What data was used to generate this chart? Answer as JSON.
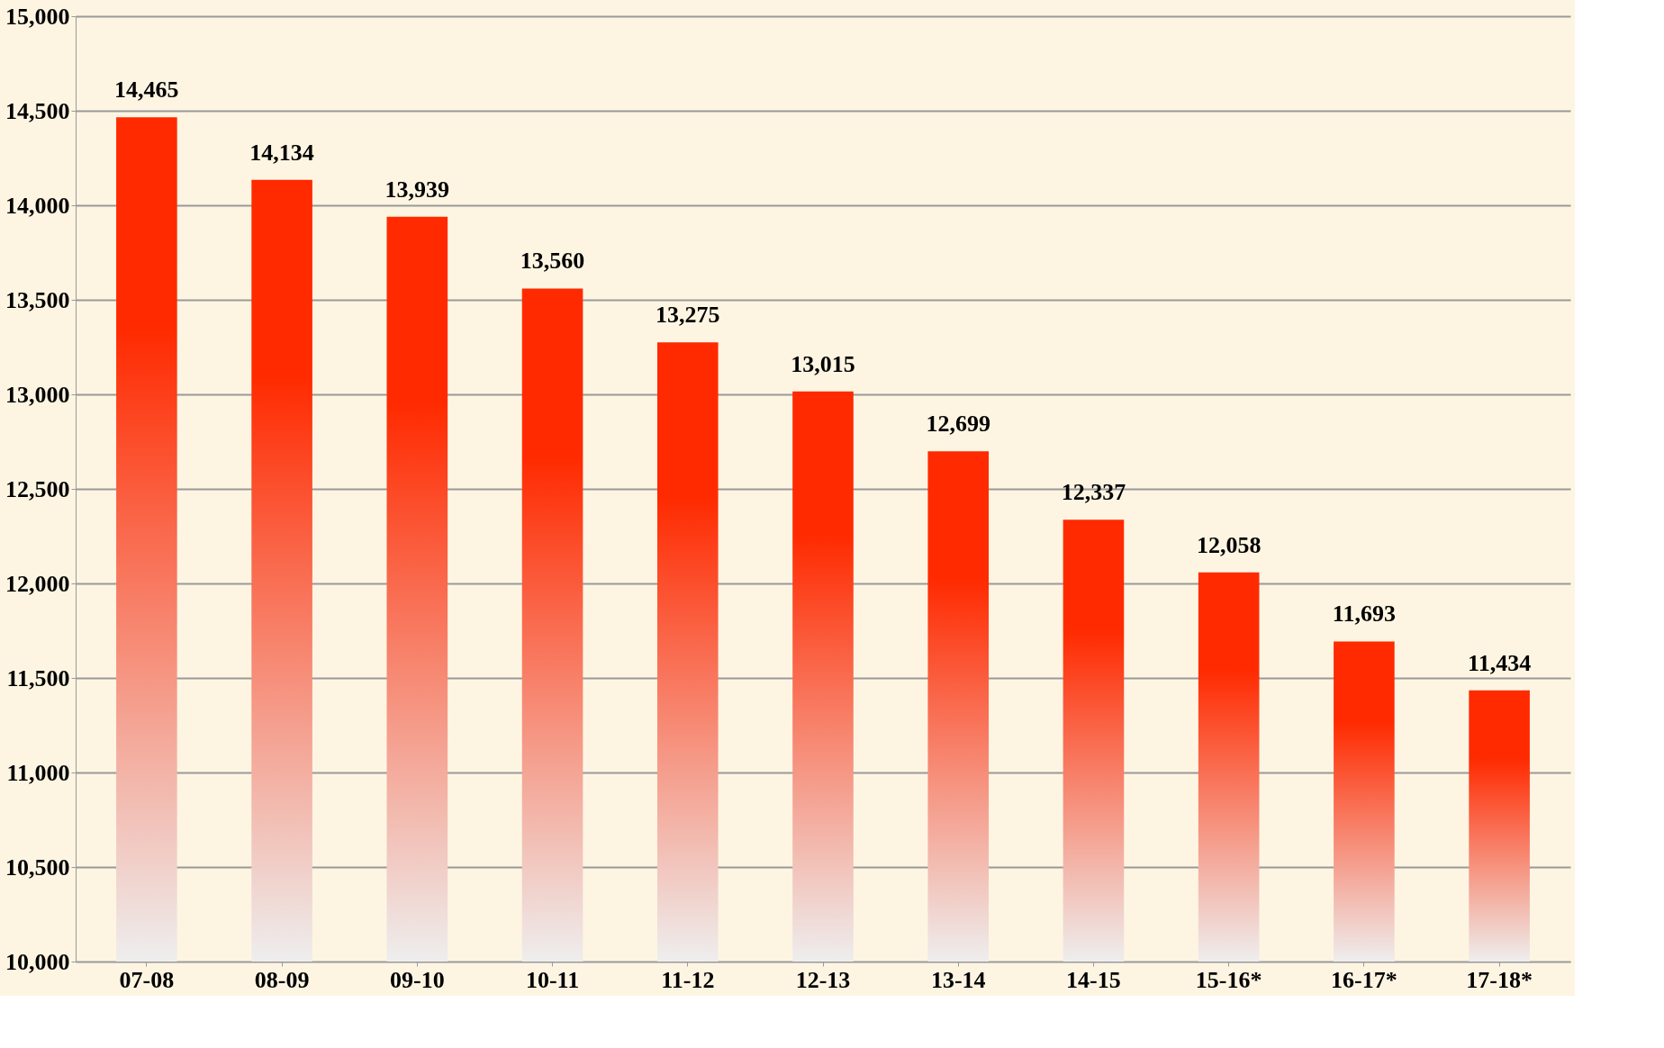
{
  "chart_data": {
    "type": "bar",
    "categories": [
      "07-08",
      "08-09",
      "09-10",
      "10-11",
      "11-12",
      "12-13",
      "13-14",
      "14-15",
      "15-16*",
      "16-17*",
      "17-18*"
    ],
    "values": [
      14465,
      14134,
      13939,
      13560,
      13275,
      13015,
      12699,
      12337,
      12058,
      11693,
      11434
    ],
    "value_labels": [
      "14,465",
      "14,134",
      "13,939",
      "13,560",
      "13,275",
      "13,015",
      "12,699",
      "12,337",
      "12,058",
      "11,693",
      "11,434"
    ],
    "color": "#ff2a00",
    "ylim": [
      10000,
      15000
    ],
    "yticks": [
      {
        "value": 10000,
        "label": "10,000"
      },
      {
        "value": 10500,
        "label": "10,500"
      },
      {
        "value": 11000,
        "label": "11,000"
      },
      {
        "value": 11500,
        "label": "11,500"
      },
      {
        "value": 12000,
        "label": "12,000"
      },
      {
        "value": 12500,
        "label": "12,500"
      },
      {
        "value": 13000,
        "label": "13,000"
      },
      {
        "value": 13500,
        "label": "13,500"
      },
      {
        "value": 14000,
        "label": "14,000"
      },
      {
        "value": 14500,
        "label": "14,500"
      },
      {
        "value": 15000,
        "label": "15,000"
      }
    ],
    "grid": "y"
  }
}
